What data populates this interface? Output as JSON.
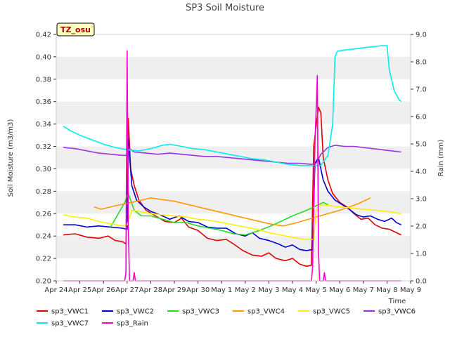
{
  "chart_data": {
    "type": "line",
    "title": "SP3 Soil Moisture",
    "xlabel": "Time",
    "ylabel": "Soil Moisture (m3/m3)",
    "y2label": "Rain (mm)",
    "annotation": "TZ_osu",
    "xlim": [
      0,
      15
    ],
    "ylim": [
      0.2,
      0.42
    ],
    "y2lim": [
      0.0,
      9.0
    ],
    "x_ticks": [
      "Apr 24",
      "Apr 25",
      "Apr 26",
      "Apr 27",
      "Apr 28",
      "Apr 29",
      "Apr 30",
      "May 1",
      "May 2",
      "May 3",
      "May 4",
      "May 5",
      "May 6",
      "May 7",
      "May 8",
      "May 9"
    ],
    "y_ticks": [
      "0.20",
      "0.22",
      "0.24",
      "0.26",
      "0.28",
      "0.30",
      "0.32",
      "0.34",
      "0.36",
      "0.38",
      "0.40",
      "0.42"
    ],
    "y2_ticks": [
      "0.0",
      "1.0",
      "2.0",
      "3.0",
      "4.0",
      "5.0",
      "6.0",
      "7.0",
      "8.0",
      "9.0"
    ],
    "grid": "horizontal bands",
    "legend_position": "bottom",
    "series": [
      {
        "name": "sp3_VWC1",
        "color": "#dd0000",
        "axis": "left",
        "points": [
          [
            0.3,
            0.241
          ],
          [
            0.8,
            0.242
          ],
          [
            1.3,
            0.239
          ],
          [
            1.8,
            0.238
          ],
          [
            2.2,
            0.24
          ],
          [
            2.5,
            0.236
          ],
          [
            2.8,
            0.235
          ],
          [
            2.95,
            0.233
          ],
          [
            3.05,
            0.345
          ],
          [
            3.15,
            0.3
          ],
          [
            3.3,
            0.285
          ],
          [
            3.5,
            0.272
          ],
          [
            3.8,
            0.263
          ],
          [
            4.2,
            0.258
          ],
          [
            4.6,
            0.253
          ],
          [
            5.0,
            0.252
          ],
          [
            5.3,
            0.256
          ],
          [
            5.6,
            0.248
          ],
          [
            6.0,
            0.245
          ],
          [
            6.4,
            0.238
          ],
          [
            6.8,
            0.236
          ],
          [
            7.2,
            0.237
          ],
          [
            7.5,
            0.233
          ],
          [
            7.9,
            0.227
          ],
          [
            8.3,
            0.223
          ],
          [
            8.7,
            0.222
          ],
          [
            9.0,
            0.225
          ],
          [
            9.3,
            0.22
          ],
          [
            9.7,
            0.218
          ],
          [
            10.0,
            0.22
          ],
          [
            10.3,
            0.215
          ],
          [
            10.6,
            0.213
          ],
          [
            10.8,
            0.214
          ],
          [
            10.9,
            0.32
          ],
          [
            11.0,
            0.338
          ],
          [
            11.1,
            0.355
          ],
          [
            11.2,
            0.35
          ],
          [
            11.3,
            0.31
          ],
          [
            11.5,
            0.29
          ],
          [
            11.7,
            0.278
          ],
          [
            12.0,
            0.27
          ],
          [
            12.3,
            0.266
          ],
          [
            12.6,
            0.26
          ],
          [
            12.9,
            0.255
          ],
          [
            13.2,
            0.256
          ],
          [
            13.5,
            0.25
          ],
          [
            13.8,
            0.247
          ],
          [
            14.1,
            0.246
          ],
          [
            14.4,
            0.243
          ],
          [
            14.6,
            0.241
          ]
        ]
      },
      {
        "name": "sp3_VWC2",
        "color": "#0000cc",
        "axis": "left",
        "points": [
          [
            0.3,
            0.25
          ],
          [
            0.8,
            0.25
          ],
          [
            1.3,
            0.248
          ],
          [
            1.8,
            0.249
          ],
          [
            2.3,
            0.248
          ],
          [
            2.8,
            0.247
          ],
          [
            3.0,
            0.246
          ],
          [
            3.05,
            0.327
          ],
          [
            3.2,
            0.285
          ],
          [
            3.4,
            0.272
          ],
          [
            3.7,
            0.266
          ],
          [
            4.0,
            0.262
          ],
          [
            4.4,
            0.259
          ],
          [
            4.8,
            0.255
          ],
          [
            5.2,
            0.258
          ],
          [
            5.6,
            0.253
          ],
          [
            6.0,
            0.252
          ],
          [
            6.4,
            0.248
          ],
          [
            6.8,
            0.247
          ],
          [
            7.2,
            0.247
          ],
          [
            7.6,
            0.242
          ],
          [
            8.0,
            0.24
          ],
          [
            8.3,
            0.243
          ],
          [
            8.6,
            0.238
          ],
          [
            9.0,
            0.236
          ],
          [
            9.4,
            0.233
          ],
          [
            9.7,
            0.23
          ],
          [
            10.0,
            0.232
          ],
          [
            10.3,
            0.228
          ],
          [
            10.6,
            0.227
          ],
          [
            10.85,
            0.228
          ],
          [
            10.95,
            0.305
          ],
          [
            11.1,
            0.31
          ],
          [
            11.3,
            0.29
          ],
          [
            11.5,
            0.28
          ],
          [
            11.8,
            0.272
          ],
          [
            12.1,
            0.268
          ],
          [
            12.4,
            0.264
          ],
          [
            12.7,
            0.259
          ],
          [
            13.0,
            0.257
          ],
          [
            13.3,
            0.258
          ],
          [
            13.6,
            0.255
          ],
          [
            13.9,
            0.253
          ],
          [
            14.2,
            0.256
          ],
          [
            14.4,
            0.252
          ],
          [
            14.6,
            0.25
          ]
        ]
      },
      {
        "name": "sp3_VWC3",
        "color": "#22dd22",
        "axis": "left",
        "points": [
          [
            2.3,
            0.248
          ],
          [
            2.9,
            0.27
          ],
          [
            3.05,
            0.278
          ],
          [
            3.3,
            0.263
          ],
          [
            3.6,
            0.258
          ],
          [
            4.0,
            0.258
          ],
          [
            4.5,
            0.255
          ],
          [
            5.0,
            0.252
          ],
          [
            5.5,
            0.252
          ],
          [
            6.0,
            0.249
          ],
          [
            6.5,
            0.247
          ],
          [
            7.0,
            0.245
          ],
          [
            7.5,
            0.242
          ],
          [
            8.0,
            0.241
          ],
          [
            8.6,
            0.245
          ],
          [
            9.2,
            0.25
          ],
          [
            10.0,
            0.258
          ],
          [
            10.6,
            0.263
          ],
          [
            11.0,
            0.267
          ],
          [
            11.3,
            0.27
          ],
          [
            11.5,
            0.268
          ]
        ]
      },
      {
        "name": "sp3_VWC4",
        "color": "#ff9900",
        "axis": "left",
        "points": [
          [
            1.6,
            0.266
          ],
          [
            1.9,
            0.264
          ],
          [
            2.5,
            0.267
          ],
          [
            3.2,
            0.27
          ],
          [
            3.6,
            0.272
          ],
          [
            4.0,
            0.274
          ],
          [
            5.0,
            0.271
          ],
          [
            6.0,
            0.266
          ],
          [
            7.0,
            0.261
          ],
          [
            8.0,
            0.256
          ],
          [
            9.0,
            0.251
          ],
          [
            9.6,
            0.249
          ],
          [
            10.2,
            0.252
          ],
          [
            11.0,
            0.257
          ],
          [
            12.0,
            0.263
          ],
          [
            12.8,
            0.269
          ],
          [
            13.3,
            0.274
          ]
        ]
      },
      {
        "name": "sp3_VWC5",
        "color": "#ffee00",
        "axis": "left",
        "points": [
          [
            0.3,
            0.259
          ],
          [
            0.8,
            0.257
          ],
          [
            1.3,
            0.256
          ],
          [
            1.8,
            0.253
          ],
          [
            2.3,
            0.251
          ],
          [
            2.8,
            0.249
          ],
          [
            3.0,
            0.25
          ],
          [
            3.2,
            0.263
          ],
          [
            3.5,
            0.262
          ],
          [
            4.0,
            0.26
          ],
          [
            4.5,
            0.259
          ],
          [
            5.0,
            0.258
          ],
          [
            5.5,
            0.257
          ],
          [
            6.0,
            0.255
          ],
          [
            6.5,
            0.254
          ],
          [
            7.0,
            0.252
          ],
          [
            7.5,
            0.25
          ],
          [
            8.0,
            0.248
          ],
          [
            8.5,
            0.246
          ],
          [
            9.0,
            0.243
          ],
          [
            9.5,
            0.241
          ],
          [
            10.0,
            0.239
          ],
          [
            10.5,
            0.237
          ],
          [
            10.9,
            0.237
          ],
          [
            11.0,
            0.263
          ],
          [
            11.2,
            0.268
          ],
          [
            11.6,
            0.267
          ],
          [
            12.0,
            0.266
          ],
          [
            12.5,
            0.265
          ],
          [
            13.0,
            0.264
          ],
          [
            13.5,
            0.263
          ],
          [
            14.0,
            0.262
          ],
          [
            14.6,
            0.26
          ]
        ]
      },
      {
        "name": "sp3_VWC6",
        "color": "#9933dd",
        "axis": "left",
        "points": [
          [
            0.3,
            0.319
          ],
          [
            0.8,
            0.318
          ],
          [
            1.3,
            0.316
          ],
          [
            1.8,
            0.314
          ],
          [
            2.3,
            0.313
          ],
          [
            2.8,
            0.312
          ],
          [
            3.0,
            0.312
          ],
          [
            3.1,
            0.318
          ],
          [
            3.3,
            0.315
          ],
          [
            3.8,
            0.314
          ],
          [
            4.3,
            0.313
          ],
          [
            4.8,
            0.314
          ],
          [
            5.3,
            0.313
          ],
          [
            5.8,
            0.312
          ],
          [
            6.3,
            0.311
          ],
          [
            6.8,
            0.311
          ],
          [
            7.3,
            0.31
          ],
          [
            7.8,
            0.309
          ],
          [
            8.3,
            0.308
          ],
          [
            8.8,
            0.307
          ],
          [
            9.3,
            0.306
          ],
          [
            9.8,
            0.305
          ],
          [
            10.3,
            0.305
          ],
          [
            10.8,
            0.304
          ],
          [
            11.0,
            0.305
          ],
          [
            11.2,
            0.313
          ],
          [
            11.5,
            0.319
          ],
          [
            11.8,
            0.321
          ],
          [
            12.2,
            0.32
          ],
          [
            12.6,
            0.32
          ],
          [
            13.0,
            0.319
          ],
          [
            13.4,
            0.318
          ],
          [
            13.8,
            0.317
          ],
          [
            14.2,
            0.316
          ],
          [
            14.6,
            0.315
          ]
        ]
      },
      {
        "name": "sp3_VWC7",
        "color": "#00eeee",
        "axis": "left",
        "points": [
          [
            0.3,
            0.338
          ],
          [
            0.6,
            0.334
          ],
          [
            1.0,
            0.33
          ],
          [
            1.5,
            0.326
          ],
          [
            2.0,
            0.322
          ],
          [
            2.5,
            0.319
          ],
          [
            3.0,
            0.317
          ],
          [
            3.5,
            0.316
          ],
          [
            4.0,
            0.318
          ],
          [
            4.5,
            0.321
          ],
          [
            4.8,
            0.322
          ],
          [
            5.3,
            0.32
          ],
          [
            5.8,
            0.318
          ],
          [
            6.3,
            0.317
          ],
          [
            6.8,
            0.315
          ],
          [
            7.3,
            0.313
          ],
          [
            7.8,
            0.311
          ],
          [
            8.3,
            0.309
          ],
          [
            8.8,
            0.308
          ],
          [
            9.3,
            0.306
          ],
          [
            9.8,
            0.304
          ],
          [
            10.3,
            0.303
          ],
          [
            10.8,
            0.303
          ],
          [
            11.2,
            0.303
          ],
          [
            11.5,
            0.312
          ],
          [
            11.7,
            0.34
          ],
          [
            11.8,
            0.4
          ],
          [
            11.9,
            0.405
          ],
          [
            12.2,
            0.406
          ],
          [
            12.6,
            0.407
          ],
          [
            13.0,
            0.408
          ],
          [
            13.4,
            0.409
          ],
          [
            13.8,
            0.41
          ],
          [
            14.0,
            0.41
          ],
          [
            14.1,
            0.388
          ],
          [
            14.3,
            0.37
          ],
          [
            14.5,
            0.362
          ],
          [
            14.6,
            0.36
          ]
        ]
      },
      {
        "name": "sp3_Rain",
        "color": "#ff00cc",
        "axis": "right",
        "points": [
          [
            0.3,
            0.0
          ],
          [
            2.9,
            0.0
          ],
          [
            2.95,
            0.3
          ],
          [
            3.0,
            8.4
          ],
          [
            3.05,
            2.0
          ],
          [
            3.1,
            0.0
          ],
          [
            3.25,
            0.0
          ],
          [
            3.3,
            0.3
          ],
          [
            3.35,
            0.0
          ],
          [
            10.8,
            0.0
          ],
          [
            10.85,
            0.5
          ],
          [
            10.95,
            5.0
          ],
          [
            11.05,
            7.5
          ],
          [
            11.1,
            1.0
          ],
          [
            11.15,
            0.0
          ],
          [
            11.3,
            0.0
          ],
          [
            11.35,
            0.3
          ],
          [
            11.4,
            0.0
          ],
          [
            14.6,
            0.0
          ]
        ]
      }
    ]
  }
}
